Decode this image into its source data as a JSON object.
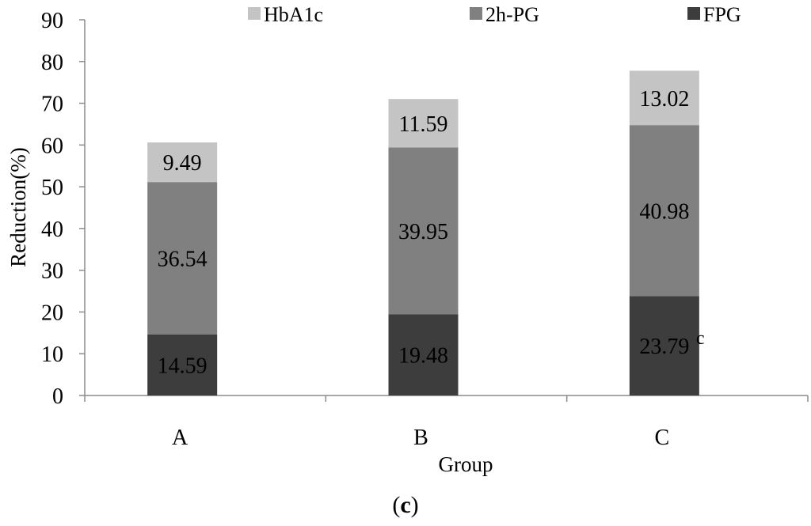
{
  "chart_data": {
    "type": "bar",
    "stacked": true,
    "categories": [
      "A",
      "B",
      "C"
    ],
    "series": [
      {
        "name": "FPG",
        "values": [
          14.59,
          19.48,
          23.79
        ],
        "color": "#3d3d3d"
      },
      {
        "name": "2h-PG",
        "values": [
          36.54,
          39.95,
          40.98
        ],
        "color": "#808080"
      },
      {
        "name": "HbA1c",
        "values": [
          9.49,
          11.59,
          13.02
        ],
        "color": "#c4c4c4"
      }
    ],
    "legend_order": [
      "HbA1c",
      "2h-PG",
      "FPG"
    ],
    "legend_position": "top",
    "xlabel": "Group",
    "ylabel": "Reduction(%)",
    "ylim": [
      0,
      90
    ],
    "yticks": [
      0,
      10,
      20,
      30,
      40,
      50,
      60,
      70,
      80,
      90
    ],
    "grid": false,
    "annotations": [
      {
        "category": "C",
        "series": "FPG",
        "text": "c"
      }
    ]
  },
  "panel_label": {
    "open": "(",
    "letter": "c",
    "close": ")"
  }
}
